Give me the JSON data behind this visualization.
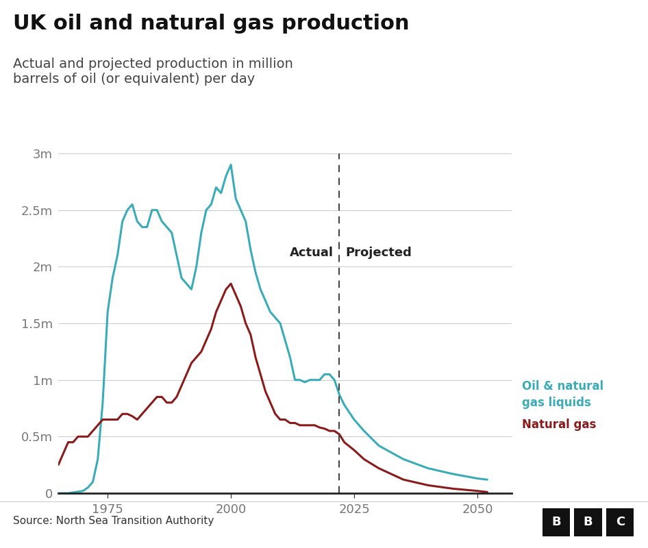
{
  "title": "UK oil and natural gas production",
  "subtitle": "Actual and projected production in million\nbarrels of oil (or equivalent) per day",
  "source": "Source: North Sea Transition Authority",
  "ytick_labels": [
    "0",
    "0.5m",
    "1m",
    "1.5m",
    "2m",
    "2.5m",
    "3m"
  ],
  "ytick_values": [
    0,
    0.5,
    1.0,
    1.5,
    2.0,
    2.5,
    3.0
  ],
  "xtick_values": [
    1975,
    2000,
    2025,
    2050
  ],
  "xmin": 1965,
  "xmax": 2057,
  "ymin": 0,
  "ymax": 3.0,
  "divider_year": 2022,
  "actual_label": "Actual",
  "projected_label": "Projected",
  "oil_color": "#3aacb8",
  "gas_color": "#8b1a1a",
  "oil_label_line1": "Oil & natural",
  "oil_label_line2": "gas liquids",
  "gas_label": "Natural gas",
  "background_color": "#ffffff",
  "grid_color": "#cccccc",
  "oil_data": {
    "years": [
      1965,
      1967,
      1970,
      1971,
      1972,
      1973,
      1974,
      1975,
      1976,
      1977,
      1978,
      1979,
      1980,
      1981,
      1982,
      1983,
      1984,
      1985,
      1986,
      1987,
      1988,
      1989,
      1990,
      1991,
      1992,
      1993,
      1994,
      1995,
      1996,
      1997,
      1998,
      1999,
      2000,
      2001,
      2002,
      2003,
      2004,
      2005,
      2006,
      2007,
      2008,
      2009,
      2010,
      2011,
      2012,
      2013,
      2014,
      2015,
      2016,
      2017,
      2018,
      2019,
      2020,
      2021,
      2022,
      2023,
      2025,
      2027,
      2030,
      2035,
      2040,
      2045,
      2050,
      2052
    ],
    "values": [
      0.0,
      0.0,
      0.02,
      0.05,
      0.1,
      0.3,
      0.8,
      1.6,
      1.9,
      2.1,
      2.4,
      2.5,
      2.55,
      2.4,
      2.35,
      2.35,
      2.5,
      2.5,
      2.4,
      2.35,
      2.3,
      2.1,
      1.9,
      1.85,
      1.8,
      2.0,
      2.3,
      2.5,
      2.55,
      2.7,
      2.65,
      2.8,
      2.9,
      2.6,
      2.5,
      2.4,
      2.15,
      1.95,
      1.8,
      1.7,
      1.6,
      1.55,
      1.5,
      1.35,
      1.2,
      1.0,
      1.0,
      0.98,
      1.0,
      1.0,
      1.0,
      1.05,
      1.05,
      1.0,
      0.87,
      0.78,
      0.65,
      0.55,
      0.42,
      0.3,
      0.22,
      0.17,
      0.13,
      0.12
    ]
  },
  "gas_data": {
    "years": [
      1965,
      1966,
      1967,
      1968,
      1969,
      1970,
      1971,
      1972,
      1973,
      1974,
      1975,
      1976,
      1977,
      1978,
      1979,
      1980,
      1981,
      1982,
      1983,
      1984,
      1985,
      1986,
      1987,
      1988,
      1989,
      1990,
      1991,
      1992,
      1993,
      1994,
      1995,
      1996,
      1997,
      1998,
      1999,
      2000,
      2001,
      2002,
      2003,
      2004,
      2005,
      2006,
      2007,
      2008,
      2009,
      2010,
      2011,
      2012,
      2013,
      2014,
      2015,
      2016,
      2017,
      2018,
      2019,
      2020,
      2021,
      2022,
      2023,
      2025,
      2027,
      2030,
      2035,
      2040,
      2045,
      2050,
      2052
    ],
    "values": [
      0.25,
      0.35,
      0.45,
      0.45,
      0.5,
      0.5,
      0.5,
      0.55,
      0.6,
      0.65,
      0.65,
      0.65,
      0.65,
      0.7,
      0.7,
      0.68,
      0.65,
      0.7,
      0.75,
      0.8,
      0.85,
      0.85,
      0.8,
      0.8,
      0.85,
      0.95,
      1.05,
      1.15,
      1.2,
      1.25,
      1.35,
      1.45,
      1.6,
      1.7,
      1.8,
      1.85,
      1.75,
      1.65,
      1.5,
      1.4,
      1.2,
      1.05,
      0.9,
      0.8,
      0.7,
      0.65,
      0.65,
      0.62,
      0.62,
      0.6,
      0.6,
      0.6,
      0.6,
      0.58,
      0.57,
      0.55,
      0.55,
      0.52,
      0.45,
      0.38,
      0.3,
      0.22,
      0.12,
      0.07,
      0.04,
      0.02,
      0.01
    ]
  }
}
